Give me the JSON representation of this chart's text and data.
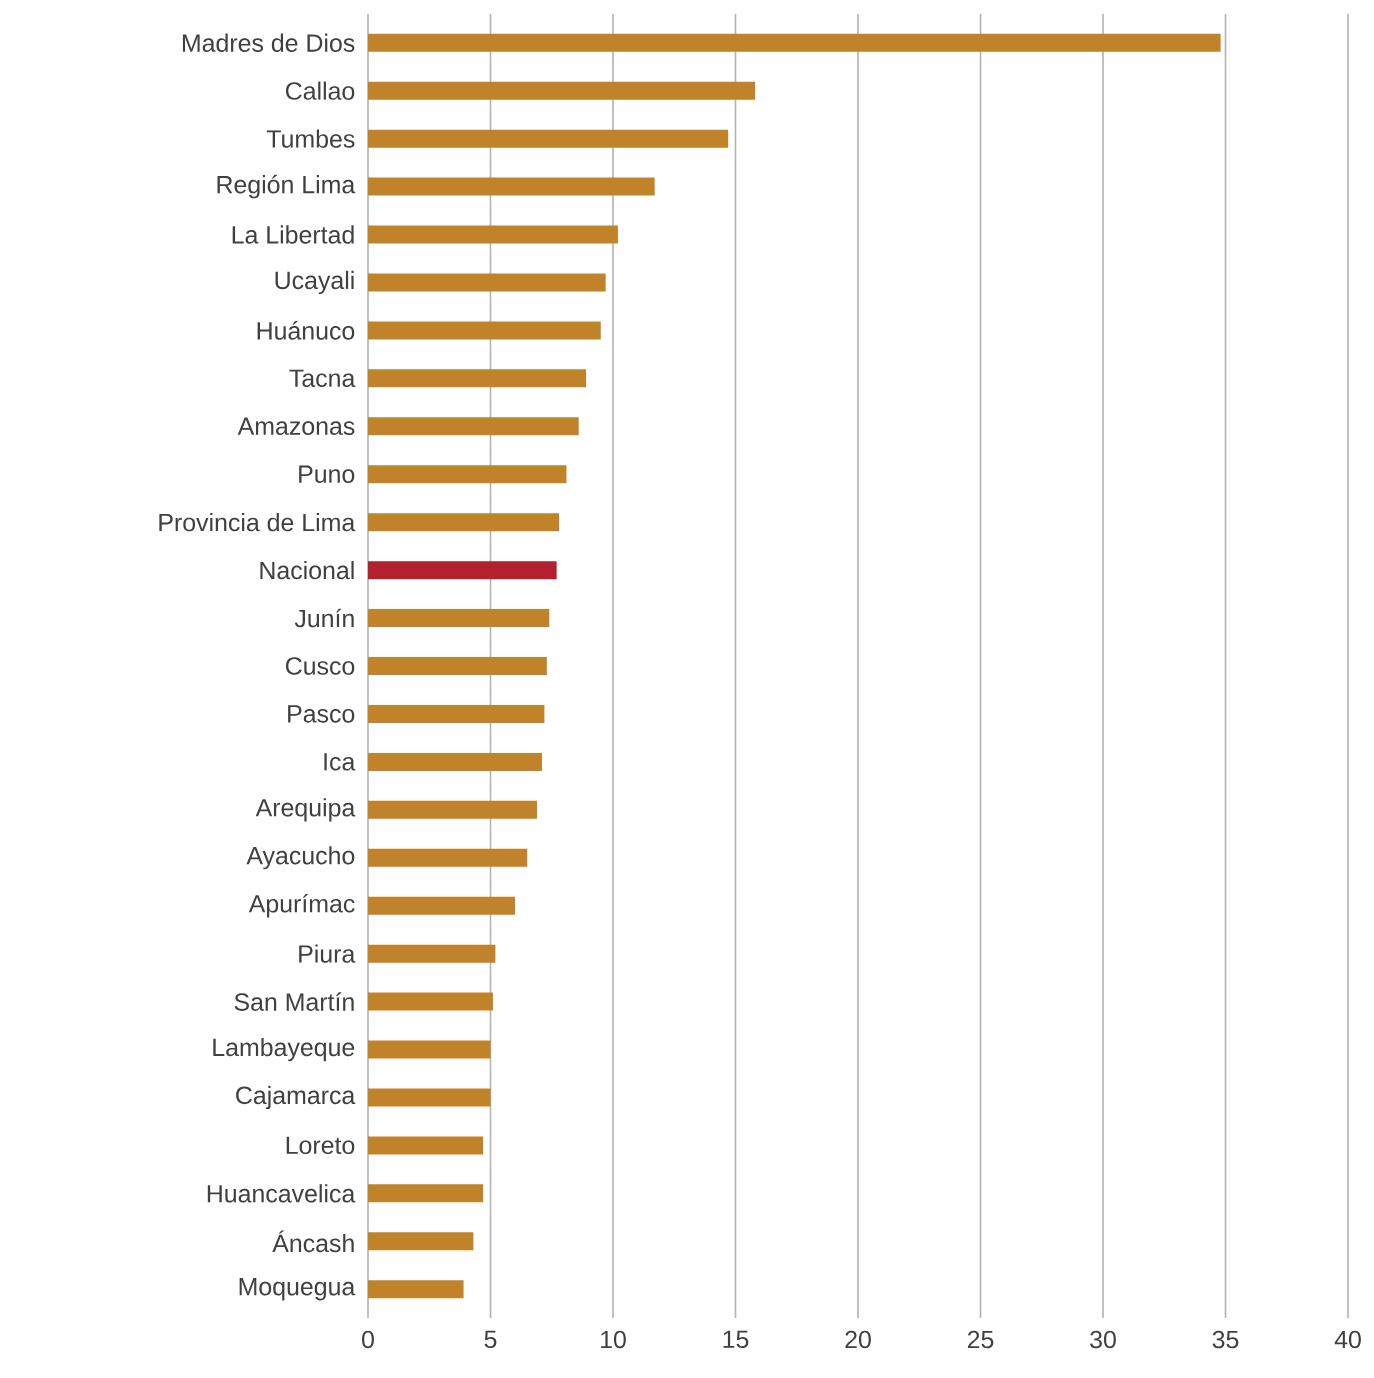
{
  "chart_data": {
    "type": "bar",
    "orientation": "horizontal",
    "categories": [
      "Madres de Dios",
      "Callao",
      "Tumbes",
      "Región Lima",
      "La Libertad",
      "Ucayali",
      "Huánuco",
      "Tacna",
      "Amazonas",
      "Puno",
      "Provincia de Lima",
      "Nacional",
      "Junín",
      "Cusco",
      "Pasco",
      "Ica",
      "Arequipa",
      "Ayacucho",
      "Apurímac",
      "Piura",
      "San Martín",
      "Lambayeque",
      "Cajamarca",
      "Loreto",
      "Huancavelica",
      "Áncash",
      "Moquegua"
    ],
    "values": [
      34.8,
      15.8,
      14.7,
      11.7,
      10.2,
      9.7,
      9.5,
      8.9,
      8.6,
      8.1,
      7.8,
      7.7,
      7.4,
      7.3,
      7.2,
      7.1,
      6.9,
      6.5,
      6.0,
      5.2,
      5.1,
      5.0,
      5.0,
      4.7,
      4.7,
      4.3,
      3.9
    ],
    "colors": [
      "#c0832a",
      "#c0832a",
      "#c0832a",
      "#c0832a",
      "#c0832a",
      "#c0832a",
      "#c0832a",
      "#c0832a",
      "#c0832a",
      "#c0832a",
      "#c0832a",
      "#b5202e",
      "#c0832a",
      "#c0832a",
      "#c0832a",
      "#c0832a",
      "#c0832a",
      "#c0832a",
      "#c0832a",
      "#c0832a",
      "#c0832a",
      "#c0832a",
      "#c0832a",
      "#c0832a",
      "#c0832a",
      "#c0832a",
      "#c0832a"
    ],
    "xlim": [
      0,
      40
    ],
    "xticks": [
      0,
      5,
      10,
      15,
      20,
      25,
      30,
      35,
      40
    ],
    "grid": "x"
  }
}
